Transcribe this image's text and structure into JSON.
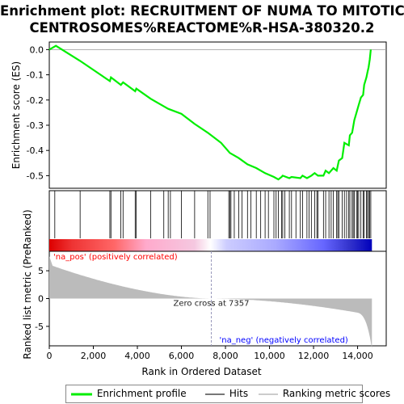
{
  "title_lines": [
    "Enrichment plot: RECRUITMENT OF NUMA TO MITOTIC",
    "CENTROSOMES%REACTOME%R-HSA-380320.2"
  ],
  "chart_data": {
    "type": "line",
    "panels": {
      "enrichment": {
        "ylabel": "Enrichment score (ES)",
        "ylim": [
          -0.55,
          0.03
        ],
        "yticks": [
          0.0,
          -0.1,
          -0.2,
          -0.3,
          -0.4,
          -0.5
        ],
        "ytick_labels": [
          "0.0",
          "-0.1",
          "-0.2",
          "-0.3",
          "-0.4",
          "-0.5"
        ],
        "series_name": "Enrichment profile",
        "color": "#00ee00",
        "x": [
          0,
          300,
          1400,
          2750,
          2800,
          3250,
          3350,
          3900,
          3950,
          4600,
          5200,
          5400,
          6000,
          6600,
          7200,
          7800,
          8200,
          8600,
          9000,
          9400,
          9800,
          10200,
          10400,
          10550,
          10600,
          10900,
          11000,
          11400,
          11500,
          11700,
          11900,
          12050,
          12200,
          12450,
          12550,
          12700,
          12900,
          13050,
          13150,
          13300,
          13400,
          13600,
          13650,
          13750,
          13850,
          13950,
          14050,
          14150,
          14250,
          14300,
          14400,
          14450,
          14500,
          14550,
          14600
        ],
        "y": [
          0.0,
          0.015,
          -0.045,
          -0.125,
          -0.11,
          -0.14,
          -0.13,
          -0.165,
          -0.155,
          -0.195,
          -0.225,
          -0.235,
          -0.255,
          -0.295,
          -0.33,
          -0.37,
          -0.41,
          -0.43,
          -0.455,
          -0.47,
          -0.49,
          -0.505,
          -0.515,
          -0.505,
          -0.5,
          -0.51,
          -0.505,
          -0.51,
          -0.5,
          -0.51,
          -0.5,
          -0.49,
          -0.5,
          -0.5,
          -0.48,
          -0.49,
          -0.47,
          -0.48,
          -0.44,
          -0.43,
          -0.37,
          -0.38,
          -0.34,
          -0.33,
          -0.28,
          -0.25,
          -0.22,
          -0.19,
          -0.18,
          -0.14,
          -0.11,
          -0.09,
          -0.07,
          -0.04,
          0.0
        ]
      },
      "hits": {
        "positions": [
          250,
          1400,
          2750,
          2800,
          3250,
          3350,
          3900,
          3950,
          4600,
          5200,
          5400,
          5500,
          6000,
          6600,
          7200,
          7300,
          8150,
          8200,
          8250,
          8400,
          8600,
          8750,
          9000,
          9150,
          9400,
          9600,
          9800,
          9950,
          10200,
          10300,
          10400,
          10550,
          10600,
          10700,
          10900,
          11000,
          11200,
          11400,
          11500,
          11700,
          11800,
          11900,
          12050,
          12150,
          12200,
          12450,
          12550,
          12700,
          12800,
          12900,
          13050,
          13100,
          13150,
          13300,
          13400,
          13500,
          13600,
          13650,
          13750,
          13800,
          13850,
          13950,
          14000,
          14050,
          14150,
          14250,
          14300,
          14400,
          14450,
          14500,
          14550,
          14600
        ]
      },
      "ranking": {
        "ylabel": "Ranked list metric (PreRanked)",
        "ylim": [
          -8.5,
          8.5
        ],
        "yticks": [
          5,
          0,
          -5
        ],
        "ytick_labels": [
          "5",
          "0",
          "-5"
        ],
        "zero_cross_label": "Zero cross at 7357",
        "zero_cross": 7357,
        "pos_label": "'na_pos' (positively correlated)",
        "neg_label": "'na_neg' (negatively correlated)"
      }
    },
    "xlabel": "Rank in Ordered Dataset",
    "xlim": [
      0,
      15300
    ],
    "xticks": [
      0,
      2000,
      4000,
      6000,
      8000,
      10000,
      12000,
      14000
    ],
    "xtick_labels": [
      "0",
      "2,000",
      "4,000",
      "6,000",
      "8,000",
      "10,000",
      "12,000",
      "14,000"
    ],
    "n_genes": 14650,
    "legend": [
      "Enrichment profile",
      "Hits",
      "Ranking metric scores"
    ]
  },
  "colors": {
    "profile": "#00ee00",
    "hits": "#000000",
    "ranking_fill": "#bbbbbb",
    "pos_text": "#ff0000",
    "neg_text": "#0000ff",
    "zero_line": "#9999bb"
  }
}
